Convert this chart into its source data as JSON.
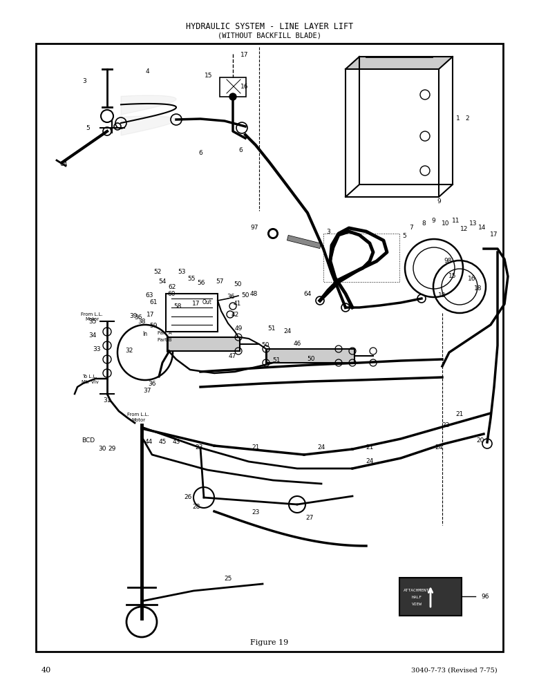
{
  "title_line1": "HYDRAULIC SYSTEM - LINE LAYER LIFT",
  "title_line2": "(WITHOUT BACKFILL BLADE)",
  "figure_label": "Figure 19",
  "page_number": "40",
  "doc_number": "3040-7-73 (Revised 7-75)",
  "bg_color": "#ffffff",
  "border_color": "#000000",
  "text_color": "#000000",
  "title_fontsize": 8.5,
  "label_fontsize": 6.5,
  "fig_width": 7.8,
  "fig_height": 10.0
}
